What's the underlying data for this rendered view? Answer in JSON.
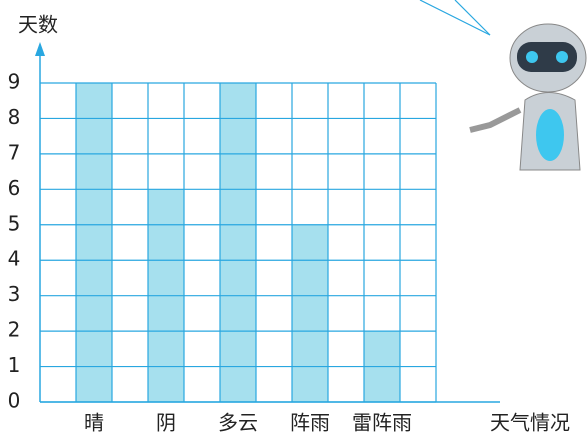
{
  "chart_data": {
    "type": "bar",
    "y_label": "天数",
    "x_label": "天气情况",
    "categories": [
      "晴",
      "阴",
      "多云",
      "阵雨",
      "雷阵雨"
    ],
    "values": [
      9,
      6,
      9,
      5,
      2
    ],
    "color": "#a6e0ee",
    "ylim": [
      0,
      9
    ],
    "yticks": [
      0,
      1,
      2,
      3,
      4,
      5,
      6,
      7,
      8,
      9
    ],
    "grid": true
  }
}
